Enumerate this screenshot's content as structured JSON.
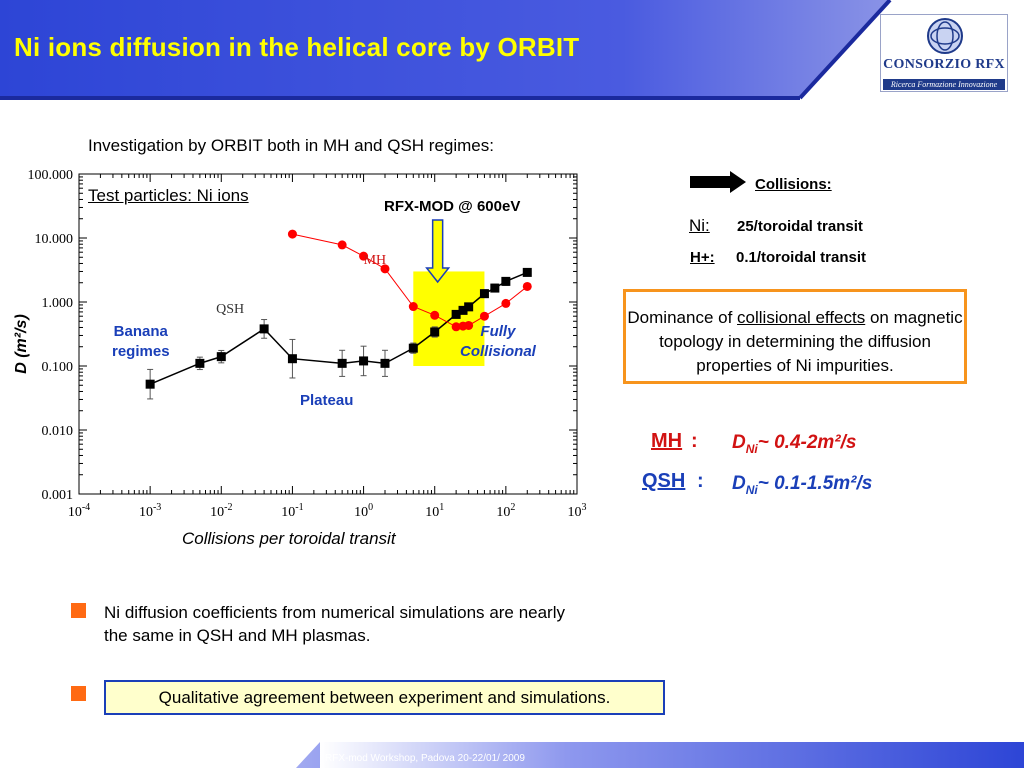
{
  "header": {
    "title": "Ni ions diffusion in the helical core by ORBIT",
    "logo": {
      "name": "CONSORZIO RFX",
      "tagline": "Ricerca Formazione Innovazione"
    }
  },
  "subtitle": "Investigation by ORBIT both in MH and QSH regimes:",
  "chart_data": {
    "type": "scatter",
    "xlabel": "Collisions per toroidal transit",
    "ylabel": "D (m²/s)",
    "xscale": "log",
    "yscale": "log",
    "xlim": [
      0.0001,
      1000
    ],
    "ylim": [
      0.001,
      100
    ],
    "x_ticks": [
      "10-4",
      "10-3",
      "10-2",
      "10-1",
      "100",
      "101",
      "102",
      "103"
    ],
    "y_ticks": [
      "0.001",
      "0.010",
      "0.100",
      "1.000",
      "10.000",
      "100.000"
    ],
    "grid": false,
    "series": [
      {
        "name": "QSH",
        "color": "#000000",
        "marker": "square",
        "x": [
          0.001,
          0.005,
          0.01,
          0.04,
          0.1,
          0.5,
          1,
          2,
          5,
          10,
          20,
          25,
          30,
          50,
          70,
          100,
          200
        ],
        "y": [
          0.052,
          0.11,
          0.14,
          0.38,
          0.13,
          0.11,
          0.12,
          0.11,
          0.19,
          0.34,
          0.64,
          0.74,
          0.84,
          1.35,
          1.65,
          2.1,
          2.9
        ],
        "yerr_factor": [
          1.7,
          1.25,
          1.25,
          1.4,
          2.0,
          1.6,
          1.7,
          1.6,
          1.2,
          1.2,
          1.1,
          1.1,
          1.1,
          1.15,
          1.15,
          1.15,
          1.1
        ],
        "annotation": "QSH"
      },
      {
        "name": "MH",
        "color": "#ff0000",
        "marker": "circle",
        "x": [
          0.1,
          0.5,
          1,
          2,
          5,
          10,
          20,
          25,
          30,
          50,
          100,
          200
        ],
        "y": [
          11.5,
          7.8,
          5.2,
          3.3,
          0.85,
          0.62,
          0.41,
          0.42,
          0.43,
          0.6,
          0.95,
          1.75
        ],
        "annotation": "MH"
      }
    ],
    "highlight_region": {
      "x": [
        5,
        50
      ],
      "y": [
        0.1,
        3.0
      ],
      "color": "#ffff00"
    },
    "annotations": {
      "test_particles": "Test particles: Ni ions",
      "rfx": "RFX-MOD @ 600eV",
      "banana_1": "Banana",
      "banana_2": "regimes",
      "fully_1": "Fully",
      "fully_2": "Collisional",
      "plateau": "Plateau"
    }
  },
  "collisions": {
    "title": "Collisions:",
    "ni_label": "Ni:",
    "ni_value": "25/toroidal transit",
    "h_label": "H+:",
    "h_value": "0.1/toroidal transit"
  },
  "dominance": {
    "pre": "Dominance of ",
    "link": "collisional effects",
    "post": " on magnetic topology in determining the diffusion properties of Ni impurities."
  },
  "regimes": {
    "mh_label": "MH",
    "mh_value": "D",
    "mh_sub": "Ni",
    "mh_rest": "~ 0.4-2m²/s",
    "qsh_label": "QSH",
    "qsh_value": "D",
    "qsh_sub": "Ni",
    "qsh_rest": "~ 0.1-1.5m²/s",
    "colon": ":"
  },
  "bullets": {
    "b1": "Ni diffusion coefficients from numerical simulations are nearly the same in QSH and MH plasmas.",
    "b2": "Qualitative agreement between experiment and simulations."
  },
  "footer": "RFX-mod Workshop, Padova 20-22/01/ 2009",
  "colors": {
    "header_blue": "#3a50d8",
    "yellow": "#ffff00",
    "orange": "#f7941d",
    "accent_red": "#d11212",
    "accent_blue": "#1a3fb8"
  }
}
